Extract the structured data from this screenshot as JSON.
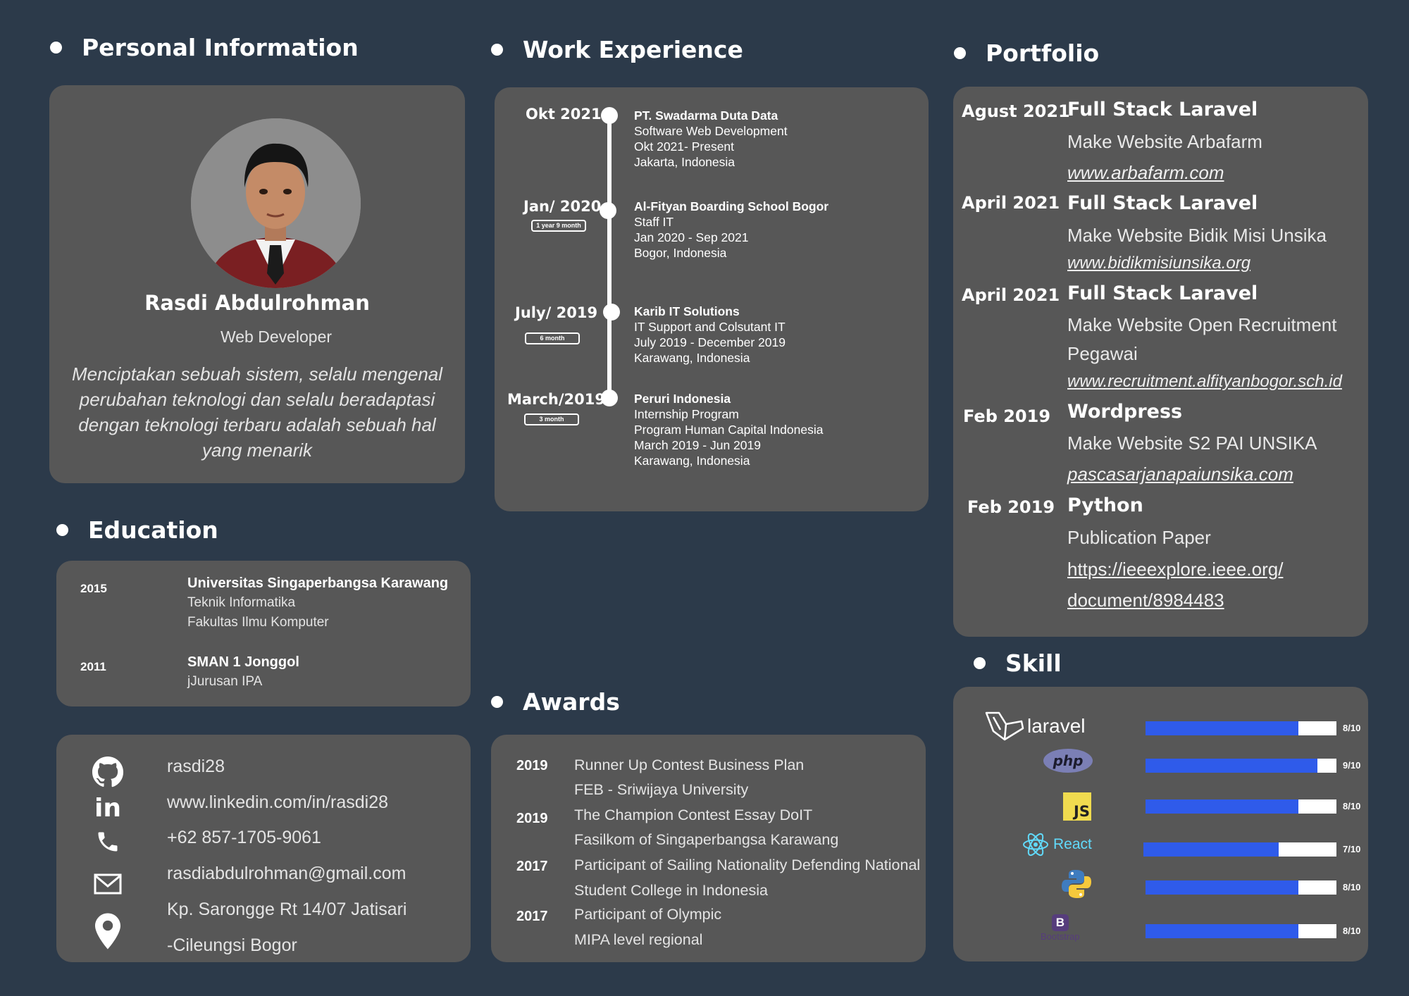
{
  "headings": {
    "personal": "Personal Information",
    "work": "Work Experience",
    "portfolio": "Portfolio",
    "education": "Education",
    "awards": "Awards",
    "skill": "Skill"
  },
  "profile": {
    "name": "Rasdi Abdulrohman",
    "role": "Web Developer",
    "quote": "Menciptakan sebuah sistem, selalu mengenal perubahan teknologi dan selalu beradaptasi dengan teknologi terbaru adalah sebuah hal yang menarik"
  },
  "work": [
    {
      "date": "Okt 2021",
      "duration": "",
      "title": "PT. Swadarma Duta Data",
      "lines": [
        "Software Web Development",
        "Okt 2021- Present",
        "Jakarta, Indonesia"
      ]
    },
    {
      "date": "Jan/ 2020",
      "duration": "1 year 9 month",
      "title": "Al-Fityan Boarding School Bogor",
      "lines": [
        "Staff IT",
        "Jan 2020 - Sep 2021",
        "Bogor, Indonesia"
      ]
    },
    {
      "date": "July/ 2019",
      "duration": "6 month",
      "title": "Karib IT Solutions",
      "lines": [
        "IT Support and Colsutant IT",
        "July 2019 - December 2019",
        "Karawang, Indonesia"
      ]
    },
    {
      "date": "March/2019",
      "duration": "3 month",
      "title": "Peruri Indonesia",
      "lines": [
        "Internship Program",
        "Program Human Capital Indonesia",
        "March 2019 - Jun 2019",
        "Karawang, Indonesia"
      ]
    }
  ],
  "education": [
    {
      "year": "2015",
      "title": "Universitas Singaperbangsa Karawang",
      "lines": [
        "Teknik Informatika",
        "Fakultas Ilmu Komputer"
      ]
    },
    {
      "year": "2011",
      "title": "SMAN 1 Jonggol",
      "lines": [
        "jJurusan IPA"
      ]
    }
  ],
  "contacts": {
    "github": "rasdi28",
    "linkedin": "www.linkedin.com/in/rasdi28",
    "phone": "+62 857-1705-9061",
    "email": "rasdiabdulrohman@gmail.com",
    "address_line1": "Kp. Sarongge Rt 14/07 Jatisari",
    "address_line2": "-Cileungsi Bogor"
  },
  "awards": [
    {
      "year": "2019",
      "line1": "Runner Up Contest Business Plan",
      "line2": "FEB - Sriwijaya University"
    },
    {
      "year": "2019",
      "line1": "The Champion Contest Essay DoIT",
      "line2": "Fasilkom of Singaperbangsa Karawang"
    },
    {
      "year": "2017",
      "line1": "Participant of Sailing Nationality Defending National",
      "line2": "Student College in Indonesia"
    },
    {
      "year": "2017",
      "line1": "Participant of Olympic",
      "line2": "MIPA level regional"
    }
  ],
  "portfolio": [
    {
      "date": "Agust 2021",
      "title": "Full Stack Laravel",
      "desc": [
        "Make Website Arbafarm"
      ],
      "link": [
        "www.arbafarm.com"
      ]
    },
    {
      "date": "April 2021",
      "title": "Full Stack Laravel",
      "desc": [
        "Make Website Bidik Misi Unsika"
      ],
      "link": [
        "www.bidikmisiunsika.org"
      ]
    },
    {
      "date": "April 2021",
      "title": "Full Stack Laravel",
      "desc": [
        "Make Website Open Recruitment",
        "Pegawai"
      ],
      "link": [
        "www.recruitment.alfityanbogor.sch.id"
      ]
    },
    {
      "date": "Feb 2019",
      "title": "Wordpress",
      "desc": [
        "Make Website S2 PAI UNSIKA"
      ],
      "link": [
        "pascasarjanapaiunsika.com"
      ]
    },
    {
      "date": "Feb 2019",
      "title": "Python",
      "desc": [
        "Publication Paper"
      ],
      "link": [
        "https://ieeexplore.ieee.org/",
        "document/8984483"
      ]
    }
  ],
  "skills": [
    {
      "name": "laravel",
      "score": "8/10",
      "level": 0.8
    },
    {
      "name": "php",
      "score": "9/10",
      "level": 0.9
    },
    {
      "name": "JS",
      "score": "8/10",
      "level": 0.8
    },
    {
      "name": "React",
      "score": "7/10",
      "level": 0.7
    },
    {
      "name": "python",
      "score": "8/10",
      "level": 0.8
    },
    {
      "name": "Bootstrap",
      "score": "8/10",
      "level": 0.8
    }
  ],
  "colors": {
    "background": "#2c3a4a",
    "card": "#575757",
    "skill_fill": "#2f5bea",
    "laravel": "#ffffff",
    "php": "#7b7fb5",
    "js": "#f0db4f",
    "react": "#61dafb",
    "python_blue": "#3f7cbf",
    "python_yellow": "#f6c93c",
    "bootstrap": "#563d7c"
  }
}
